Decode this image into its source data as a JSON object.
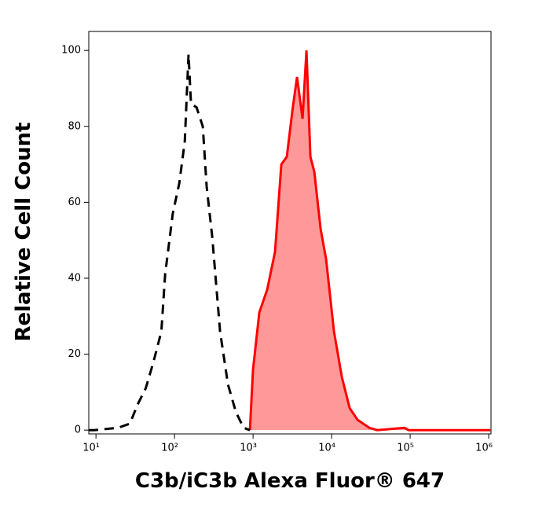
{
  "chart_data": {
    "type": "histogram-overlay",
    "x_label": "C3b/iC3b Alexa Fluor® 647",
    "y_label": "Relative Cell Count",
    "x_log": true,
    "xlim": [
      8.1,
      1070000
    ],
    "xticks": [
      {
        "value": 10,
        "label": "10¹"
      },
      {
        "value": 100,
        "label": "10²"
      },
      {
        "value": 1000,
        "label": "10³"
      },
      {
        "value": 10000,
        "label": "10⁴"
      },
      {
        "value": 100000,
        "label": "10⁵"
      },
      {
        "value": 1000000,
        "label": "10⁶"
      }
    ],
    "ylim": [
      -1,
      105
    ],
    "yticks": [
      0,
      20,
      40,
      60,
      80,
      100
    ],
    "series": [
      {
        "color": "#000000",
        "dashed": true,
        "filled": false,
        "x": [
          8.1,
          9.5,
          19,
          27,
          34,
          43,
          54,
          68,
          76,
          95,
          115,
          135,
          151,
          162,
          191,
          229,
          257,
          302,
          380,
          479,
          603,
          759,
          912
        ],
        "values": [
          0,
          0,
          0.6,
          1.7,
          6.8,
          11,
          18,
          26,
          41,
          57,
          65,
          76,
          99,
          86,
          85,
          80,
          64,
          51,
          26,
          12,
          4.8,
          0.6,
          0
        ]
      },
      {
        "color": "#ff0000",
        "fill": "#ff9999",
        "dashed": false,
        "filled": true,
        "x": [
          912,
          1000,
          1202,
          1514,
          1905,
          2291,
          2692,
          3162,
          3631,
          4266,
          4786,
          5370,
          6026,
          7244,
          8511,
          10715,
          13490,
          16982,
          21380,
          30200,
          38019,
          85114,
          95499,
          1050000
        ],
        "values": [
          0,
          16,
          31,
          37,
          47,
          70,
          72,
          84,
          93,
          82,
          100,
          72,
          68,
          53,
          45,
          26,
          14,
          5.8,
          2.7,
          0.6,
          0,
          0.6,
          0,
          0
        ]
      }
    ]
  }
}
